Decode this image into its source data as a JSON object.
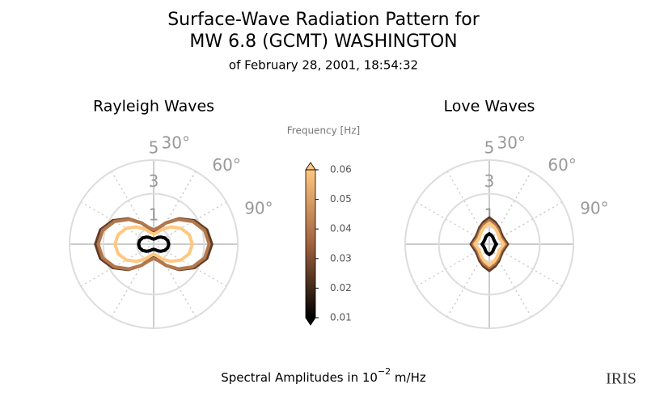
{
  "title": [
    "Surface-Wave Radiation Pattern for",
    "MW 6.8 (GCMT) WASHINGTON"
  ],
  "subtitle": "of February 28, 2001, 18:54:32",
  "xlabel": {
    "prefix": "Spectral Amplitudes in 10",
    "exponent": "−2",
    "suffix": " m/Hz"
  },
  "logo": "IRIS",
  "colorbar": {
    "label": "Frequency [Hz]",
    "lim": [
      0.01,
      0.06
    ],
    "ticks": [
      0.01,
      0.02,
      0.03,
      0.04,
      0.05,
      0.06
    ],
    "colors": [
      "#000000",
      "#a0633f",
      "#ffc77f"
    ]
  },
  "chart_data": [
    {
      "type": "polar",
      "title": "Rayleigh Waves",
      "rlim": [
        0,
        5
      ],
      "rticks": [
        1,
        3,
        5
      ],
      "thetaticks": [
        {
          "value": 30,
          "label": "30°"
        },
        {
          "value": 60,
          "label": "60°"
        },
        {
          "value": 90,
          "label": "90°"
        }
      ],
      "theta": [
        0,
        15,
        30,
        45,
        60,
        75,
        90,
        105,
        120,
        135,
        150,
        165,
        180,
        195,
        210,
        225,
        240,
        255,
        270,
        285,
        300,
        315,
        330,
        345
      ],
      "series": [
        {
          "frequency": 0.025,
          "values": [
            0.8,
            0.98,
            1.46,
            2.13,
            2.79,
            3.27,
            3.45,
            3.27,
            2.79,
            2.13,
            1.46,
            0.98,
            0.8,
            0.98,
            1.46,
            2.13,
            2.79,
            3.27,
            3.45,
            3.27,
            2.79,
            2.13,
            1.46,
            0.98
          ]
        },
        {
          "frequency": 0.04,
          "values": [
            0.85,
            1.01,
            1.46,
            2.08,
            2.69,
            3.14,
            3.3,
            3.14,
            2.69,
            2.08,
            1.46,
            1.01,
            0.85,
            1.01,
            1.46,
            2.08,
            2.69,
            3.14,
            3.3,
            3.14,
            2.69,
            2.08,
            1.46,
            1.01
          ]
        },
        {
          "frequency": 0.06,
          "values": [
            0.6,
            0.71,
            1.03,
            1.45,
            1.88,
            2.19,
            2.3,
            2.19,
            1.88,
            1.45,
            1.03,
            0.71,
            0.6,
            0.71,
            1.03,
            1.45,
            1.88,
            2.19,
            2.3,
            2.19,
            1.88,
            1.45,
            1.03,
            0.71
          ]
        },
        {
          "frequency": 0.01,
          "values": [
            0.3,
            0.34,
            0.45,
            0.6,
            0.75,
            0.86,
            0.9,
            0.86,
            0.75,
            0.6,
            0.45,
            0.34,
            0.3,
            0.34,
            0.45,
            0.6,
            0.75,
            0.86,
            0.9,
            0.86,
            0.75,
            0.6,
            0.45,
            0.34
          ]
        }
      ]
    },
    {
      "type": "polar",
      "title": "Love Waves",
      "rlim": [
        0,
        5
      ],
      "rticks": [
        1,
        3,
        5
      ],
      "thetaticks": [
        {
          "value": 30,
          "label": "30°"
        },
        {
          "value": 60,
          "label": "60°"
        },
        {
          "value": 90,
          "label": "90°"
        }
      ],
      "theta": [
        0,
        15,
        30,
        45,
        60,
        75,
        90,
        105,
        120,
        135,
        150,
        165,
        180,
        195,
        210,
        225,
        240,
        255,
        270,
        285,
        300,
        315,
        330,
        345
      ],
      "series": [
        {
          "frequency": 0.025,
          "values": [
            1.56,
            1.34,
            1.13,
            0.96,
            0.89,
            0.94,
            1.08,
            0.94,
            0.89,
            0.96,
            1.13,
            1.34,
            1.56,
            1.34,
            1.13,
            0.96,
            0.89,
            0.94,
            1.08,
            0.94,
            0.89,
            0.96,
            1.13,
            1.34
          ]
        },
        {
          "frequency": 0.04,
          "values": [
            1.4,
            1.21,
            1.02,
            0.86,
            0.8,
            0.84,
            0.97,
            0.84,
            0.8,
            0.86,
            1.02,
            1.21,
            1.4,
            1.21,
            1.02,
            0.86,
            0.8,
            0.84,
            0.97,
            0.84,
            0.8,
            0.86,
            1.02,
            1.21
          ]
        },
        {
          "frequency": 0.06,
          "values": [
            1.25,
            1.07,
            0.9,
            0.77,
            0.71,
            0.75,
            0.86,
            0.75,
            0.71,
            0.77,
            0.9,
            1.07,
            1.25,
            1.07,
            0.9,
            0.77,
            0.71,
            0.75,
            0.86,
            0.75,
            0.71,
            0.77,
            0.9,
            1.07
          ]
        },
        {
          "frequency": 0.01,
          "values": [
            0.62,
            0.54,
            0.45,
            0.38,
            0.36,
            0.37,
            0.43,
            0.37,
            0.36,
            0.38,
            0.45,
            0.54,
            0.62,
            0.54,
            0.45,
            0.38,
            0.36,
            0.37,
            0.43,
            0.37,
            0.36,
            0.38,
            0.45,
            0.54
          ]
        }
      ]
    }
  ]
}
